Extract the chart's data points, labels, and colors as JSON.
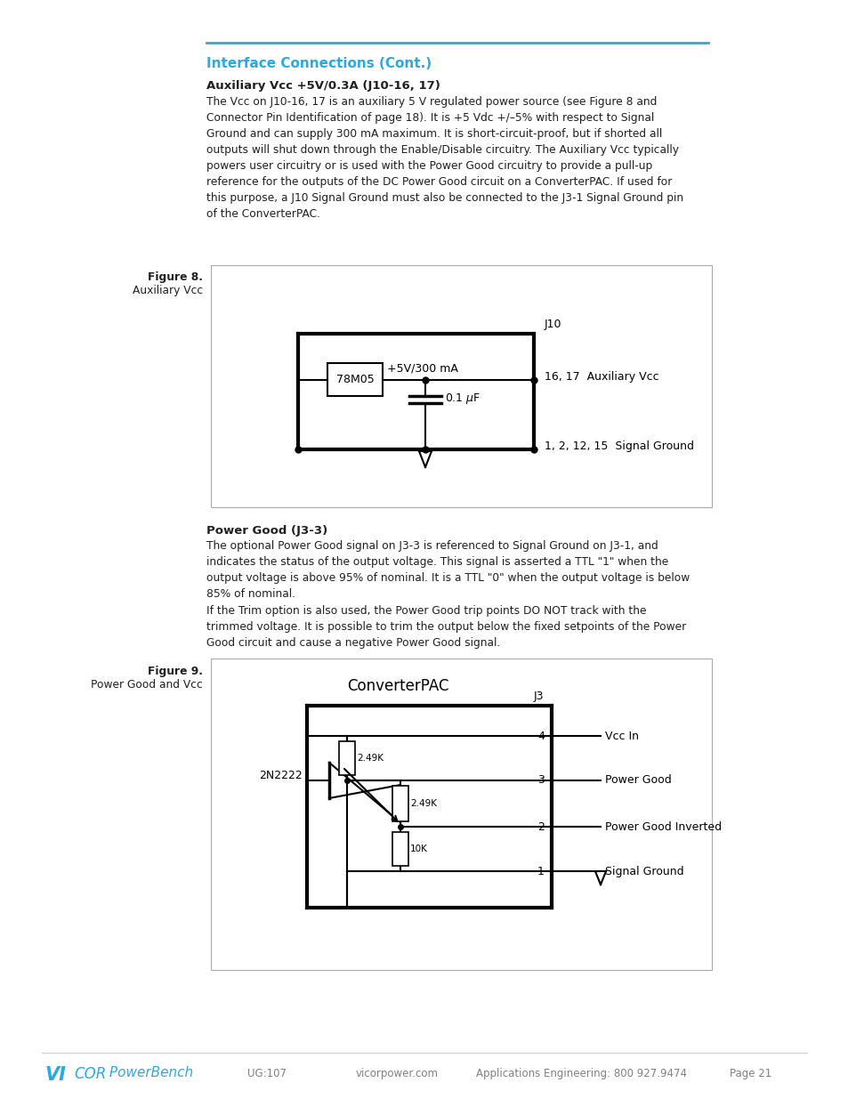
{
  "page_bg": "#ffffff",
  "top_line_color": "#29abe2",
  "header_title": "Interface Connections (Cont.)",
  "header_title_color": "#29abe2",
  "section1_title": "Auxiliary Vcc +5V/0.3A (J10-16, 17)",
  "section1_body": "The Vcc on J10-16, 17 is an auxiliary 5 V regulated power source (see Figure 8 and\nConnector Pin Identification of page 18). It is +5 Vdc +/–5% with respect to Signal\nGround and can supply 300 mA maximum. It is short-circuit-proof, but if shorted all\noutputs will shut down through the Enable/Disable circuitry. The Auxiliary Vcc typically\npowers user circuitry or is used with the Power Good circuitry to provide a pull-up\nreference for the outputs of the DC Power Good circuit on a ConverterPAC. If used for\nthis purpose, a J10 Signal Ground must also be connected to the J3-1 Signal Ground pin\nof the ConverterPAC.",
  "fig8_label": "Figure 8.",
  "fig8_sublabel": "Auxiliary Vcc",
  "section2_title": "Power Good (J3-3)",
  "section2_body1": "The optional Power Good signal on J3-3 is referenced to Signal Ground on J3-1, and\nindicates the status of the output voltage. This signal is asserted a TTL \"1\" when the\noutput voltage is above 95% of nominal. It is a TTL \"0\" when the output voltage is below\n85% of nominal.",
  "section2_body2": "If the Trim option is also used, the Power Good trip points DO NOT track with the\ntrimmed voltage. It is possible to trim the output below the fixed setpoints of the Power\nGood circuit and cause a negative Power Good signal.",
  "fig9_label": "Figure 9.",
  "fig9_sublabel": "Power Good and Vcc",
  "footer_ug": "UG:107",
  "footer_web": "vicorpower.com",
  "footer_app": "Applications Engineering: 800 927.9474",
  "footer_page": "Page 21",
  "text_color": "#231f20",
  "footer_text_color": "#808080",
  "cyan": "#29abe2"
}
